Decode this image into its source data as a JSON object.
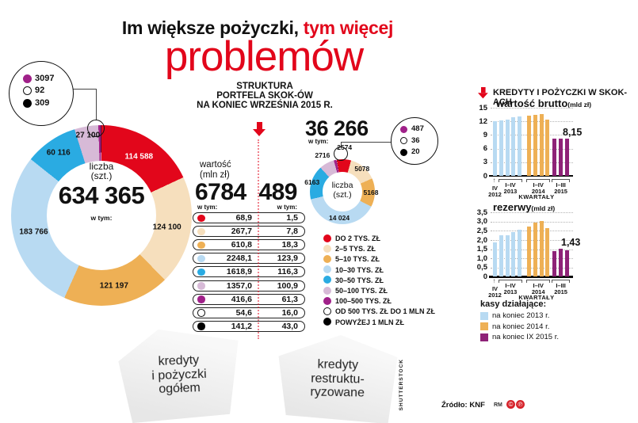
{
  "title": {
    "line1_black": "Im większe pożyczki,",
    "line1_red": "tym więcej",
    "line2": "problemów"
  },
  "section_header": {
    "line1": "STRUKTURA",
    "line2": "PORTFELA SKOK-ÓW",
    "line3": "NA KONIEC WRZEŚNIA 2015 R."
  },
  "columns": {
    "col1_title": "wartość",
    "col1_unit": "(mln zł)",
    "col1_total": "6784",
    "col1_note": "w tym:",
    "col2_total": "489",
    "col2_note": "w tym:"
  },
  "table_rows": [
    {
      "color_key": "red",
      "v1": "68,9",
      "v2": "1,5"
    },
    {
      "color_key": "cream",
      "v1": "267,7",
      "v2": "7,8"
    },
    {
      "color_key": "orange",
      "v1": "610,8",
      "v2": "18,3"
    },
    {
      "color_key": "paleblue",
      "v1": "2248,1",
      "v2": "123,9"
    },
    {
      "color_key": "blue",
      "v1": "1618,9",
      "v2": "116,3"
    },
    {
      "color_key": "lavender",
      "v1": "1357,0",
      "v2": "100,9"
    },
    {
      "color_key": "magenta",
      "v1": "416,6",
      "v2": "61,3"
    },
    {
      "color_key": "white",
      "v1": "54,6",
      "v2": "16,0"
    },
    {
      "color_key": "black",
      "v1": "141,2",
      "v2": "43,0"
    }
  ],
  "categories": [
    {
      "color_key": "red",
      "label": "DO 2 TYS. ZŁ"
    },
    {
      "color_key": "cream",
      "label": "2–5 TYS. ZŁ"
    },
    {
      "color_key": "orange",
      "label": "5–10 TYS. ZŁ"
    },
    {
      "color_key": "paleblue",
      "label": "10–30 TYS. ZŁ"
    },
    {
      "color_key": "blue",
      "label": "30–50 TYS. ZŁ"
    },
    {
      "color_key": "lavender",
      "label": "50–100 TYS. ZŁ"
    },
    {
      "color_key": "magenta",
      "label": "100–500 TYS. ZŁ"
    },
    {
      "color_key": "white",
      "label": "OD 500 TYS. ZŁ DO 1 MLN ZŁ"
    },
    {
      "color_key": "black",
      "label": "POWYŻEJ 1 MLN ZŁ"
    }
  ],
  "chart_data": [
    {
      "type": "donut",
      "id": "big-donut",
      "center_line1": "liczba",
      "center_line2": "(szt.)",
      "total": "634 365",
      "note": "w tym:",
      "slices": [
        {
          "category": "DO 2 TYS. ZŁ",
          "color_key": "red",
          "value": 114588,
          "label": "114 588"
        },
        {
          "category": "2–5 TYS. ZŁ",
          "color_key": "cream",
          "value": 124100,
          "label": "124 100"
        },
        {
          "category": "5–10 TYS. ZŁ",
          "color_key": "orange",
          "value": 121197,
          "label": "121 197"
        },
        {
          "category": "10–30 TYS. ZŁ",
          "color_key": "paleblue",
          "value": 183766,
          "label": "183 766"
        },
        {
          "category": "30–50 TYS. ZŁ",
          "color_key": "blue",
          "value": 60116,
          "label": "60 116"
        },
        {
          "category": "50–100 TYS. ZŁ",
          "color_key": "lavender",
          "value": 27100,
          "label": "27 100"
        },
        {
          "category": "100–500 TYS. ZŁ",
          "color_key": "magenta",
          "value": 3097,
          "label": ""
        },
        {
          "category": "OD 500 TYS. ZŁ DO 1 MLN ZŁ",
          "color_key": "white",
          "value": 92,
          "label": ""
        },
        {
          "category": "POWYŻEJ 1 MLN ZŁ",
          "color_key": "black",
          "value": 309,
          "label": ""
        }
      ],
      "callout": [
        {
          "color_key": "magenta",
          "label": "3097"
        },
        {
          "color_key": "white",
          "label": "92"
        },
        {
          "color_key": "black",
          "label": "309"
        }
      ]
    },
    {
      "type": "donut",
      "id": "small-donut",
      "center_line1": "liczba",
      "center_line2": "(szt.)",
      "total": "36 266",
      "note": "w tym:",
      "slices": [
        {
          "category": "DO 2 TYS. ZŁ",
          "color_key": "red",
          "value": 2574,
          "label": "2574"
        },
        {
          "category": "2–5 TYS. ZŁ",
          "color_key": "cream",
          "value": 5078,
          "label": "5078"
        },
        {
          "category": "5–10 TYS. ZŁ",
          "color_key": "orange",
          "value": 5168,
          "label": "5168"
        },
        {
          "category": "10–30 TYS. ZŁ",
          "color_key": "paleblue",
          "value": 14024,
          "label": "14 024"
        },
        {
          "category": "30–50 TYS. ZŁ",
          "color_key": "blue",
          "value": 6163,
          "label": "6163"
        },
        {
          "category": "50–100 TYS. ZŁ",
          "color_key": "lavender",
          "value": 2716,
          "label": "2716"
        },
        {
          "category": "100–500 TYS. ZŁ",
          "color_key": "magenta",
          "value": 487,
          "label": ""
        },
        {
          "category": "OD 500 TYS. ZŁ DO 1 MLN ZŁ",
          "color_key": "white",
          "value": 36,
          "label": ""
        },
        {
          "category": "POWYŻEJ 1 MLN ZŁ",
          "color_key": "black",
          "value": 20,
          "label": ""
        }
      ],
      "callout": [
        {
          "color_key": "magenta",
          "label": "487"
        },
        {
          "color_key": "white",
          "label": "36"
        },
        {
          "color_key": "black",
          "label": "20"
        }
      ]
    },
    {
      "type": "bar",
      "id": "chart-brutto",
      "title": "wartość brutto",
      "unit": "(mld zł)",
      "ylim": [
        0,
        15
      ],
      "yticks": [
        "15",
        "12",
        "9",
        "6",
        "3",
        "0"
      ],
      "series": [
        {
          "name": "na koniec 2013 r.",
          "color_key": "paleblue",
          "values": [
            11.95,
            12.25,
            12.45,
            12.95,
            13.1
          ]
        },
        {
          "name": "na koniec 2014 r.",
          "color_key": "orange",
          "values": [
            13.2,
            13.45,
            13.6,
            12.3
          ]
        },
        {
          "name": "na koniec IX 2015 r.",
          "color_key": "purple",
          "values": [
            8.2,
            8.2,
            8.15
          ]
        }
      ],
      "annotation": "8,15",
      "x_groups": [
        {
          "label1": "IV",
          "label2": "2012",
          "style": "arrow",
          "range": [
            0,
            0
          ]
        },
        {
          "label1": "I–IV",
          "label2": "2013",
          "style": "bracket",
          "range": [
            1,
            4
          ]
        },
        {
          "label1": "I–IV",
          "label2": "2014",
          "style": "bracket",
          "range": [
            5,
            8
          ]
        },
        {
          "label1": "I–III",
          "label2": "2015",
          "style": "bracket",
          "range": [
            9,
            11
          ]
        }
      ],
      "xlabel": "KWARTAŁY"
    },
    {
      "type": "bar",
      "id": "chart-rezerwy",
      "title": "rezerwy",
      "unit": "(mld zł)",
      "ylim": [
        0,
        3.5
      ],
      "yticks": [
        "3,5",
        "3,0",
        "2,5",
        "2,0",
        "1,5",
        "1,0",
        "0,5",
        "0"
      ],
      "series": [
        {
          "name": "na koniec 2013 r.",
          "color_key": "paleblue",
          "values": [
            1.85,
            2.25,
            2.25,
            2.45,
            2.55
          ]
        },
        {
          "name": "na koniec 2014 r.",
          "color_key": "orange",
          "values": [
            2.75,
            2.95,
            3.05,
            2.65
          ]
        },
        {
          "name": "na koniec IX 2015 r.",
          "color_key": "purple",
          "values": [
            1.4,
            1.52,
            1.43
          ]
        }
      ],
      "annotation": "1,43",
      "x_groups": [
        {
          "label1": "IV",
          "label2": "2012",
          "style": "arrow",
          "range": [
            0,
            0
          ]
        },
        {
          "label1": "I–IV",
          "label2": "2013",
          "style": "bracket",
          "range": [
            1,
            4
          ]
        },
        {
          "label1": "I–IV",
          "label2": "2014",
          "style": "bracket",
          "range": [
            5,
            8
          ]
        },
        {
          "label1": "I–III",
          "label2": "2015",
          "style": "bracket",
          "range": [
            9,
            11
          ]
        }
      ],
      "xlabel": "KWARTAŁY"
    }
  ],
  "right_panel": {
    "header": "KREDYTY I POŻYCZKI W SKOK-ACH",
    "legend_title": "kasy działające:",
    "legend": [
      {
        "color_key": "paleblue",
        "label": "na koniec 2013 r."
      },
      {
        "color_key": "orange",
        "label": "na koniec 2014 r."
      },
      {
        "color_key": "purple",
        "label": "na koniec IX 2015 r."
      }
    ]
  },
  "arrows_bottom": {
    "left": [
      "kredyty",
      "i pożyczki",
      "ogółem"
    ],
    "right": [
      "kredyty",
      "restruktu-",
      "ryzowane"
    ]
  },
  "footer": {
    "source": "Źródło: KNF",
    "credit": "RM"
  },
  "watermark": "SHUTTERSTOCK",
  "icons": {
    "copyright1": "©",
    "copyright2": "℗"
  },
  "colors": {
    "red": "#e2061b",
    "cream": "#f6dfbd",
    "orange": "#eeb055",
    "paleblue": "#b8daf2",
    "blue": "#2aabe2",
    "lavender": "#d7bad7",
    "magenta": "#a02189",
    "purple": "#8e2277",
    "white": "#ffffff",
    "black": "#000000"
  }
}
